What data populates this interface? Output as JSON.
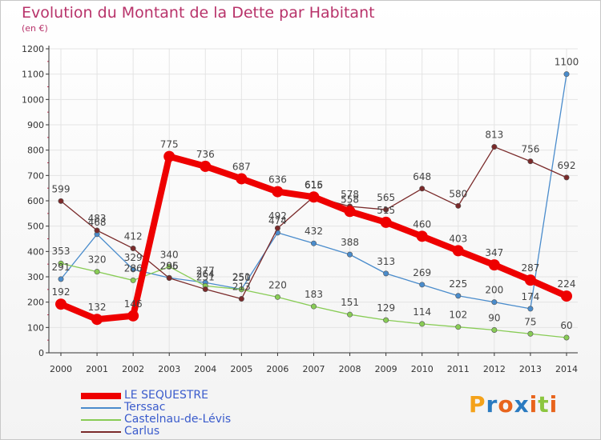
{
  "title": "Evolution du Montant de la Dette par Habitant",
  "unit_label": "(en €)",
  "logo_text": "Proxiti",
  "colors": {
    "title": "#b8336a",
    "axis": "#333333",
    "grid": "#e4e4e4"
  },
  "chart_data": {
    "type": "line",
    "title": "Evolution du Montant de la Dette par Habitant",
    "ylabel": "(en €)",
    "xlabel": "",
    "x": [
      "2000",
      "2001",
      "2002",
      "2003",
      "2004",
      "2005",
      "2006",
      "2007",
      "2008",
      "2009",
      "2010",
      "2011",
      "2012",
      "2013",
      "2014"
    ],
    "ylim": [
      0,
      1200
    ],
    "yticks": [
      0,
      100,
      200,
      300,
      400,
      500,
      600,
      700,
      800,
      900,
      1000,
      1100,
      1200
    ],
    "grid": true,
    "legend_position": "bottom-left",
    "series": [
      {
        "name": "LE SEQUESTRE",
        "color": "#ee0000",
        "values": [
          192,
          132,
          146,
          775,
          736,
          687,
          636,
          615,
          558,
          515,
          460,
          403,
          347,
          287,
          224
        ],
        "labels": [
          "192",
          "132",
          "146",
          "775",
          "736",
          "687",
          "636",
          "615",
          "558",
          "515",
          "460",
          "403",
          "347",
          "287",
          "224"
        ]
      },
      {
        "name": "Terssac",
        "color": "#4a8ccc",
        "values": [
          291,
          468,
          329,
          296,
          277,
          251,
          474,
          432,
          388,
          313,
          269,
          225,
          200,
          174,
          1100
        ],
        "labels": [
          "291",
          "468",
          "329",
          "296",
          "277",
          "251",
          "474",
          "432",
          "388",
          "313",
          "269",
          "225",
          "200",
          "174",
          "1100"
        ]
      },
      {
        "name": "Castelnau-de-Lévis",
        "color": "#88cc55",
        "values": [
          353,
          320,
          286,
          340,
          264,
          250,
          220,
          183,
          151,
          129,
          114,
          102,
          90,
          75,
          60
        ],
        "labels": [
          "353",
          "320",
          "286",
          "340",
          "264",
          "250",
          "220",
          "183",
          "151",
          "129",
          "114",
          "102",
          "90",
          "75",
          "60"
        ]
      },
      {
        "name": "Carlus",
        "color": "#7a2a2a",
        "values": [
          599,
          483,
          412,
          295,
          251,
          213,
          492,
          616,
          578,
          565,
          648,
          580,
          813,
          756,
          692
        ],
        "labels": [
          "599",
          "483",
          "412",
          "295",
          "251",
          "213",
          "492",
          "616",
          "578",
          "565",
          "648",
          "580",
          "813",
          "756",
          "692"
        ]
      }
    ]
  }
}
